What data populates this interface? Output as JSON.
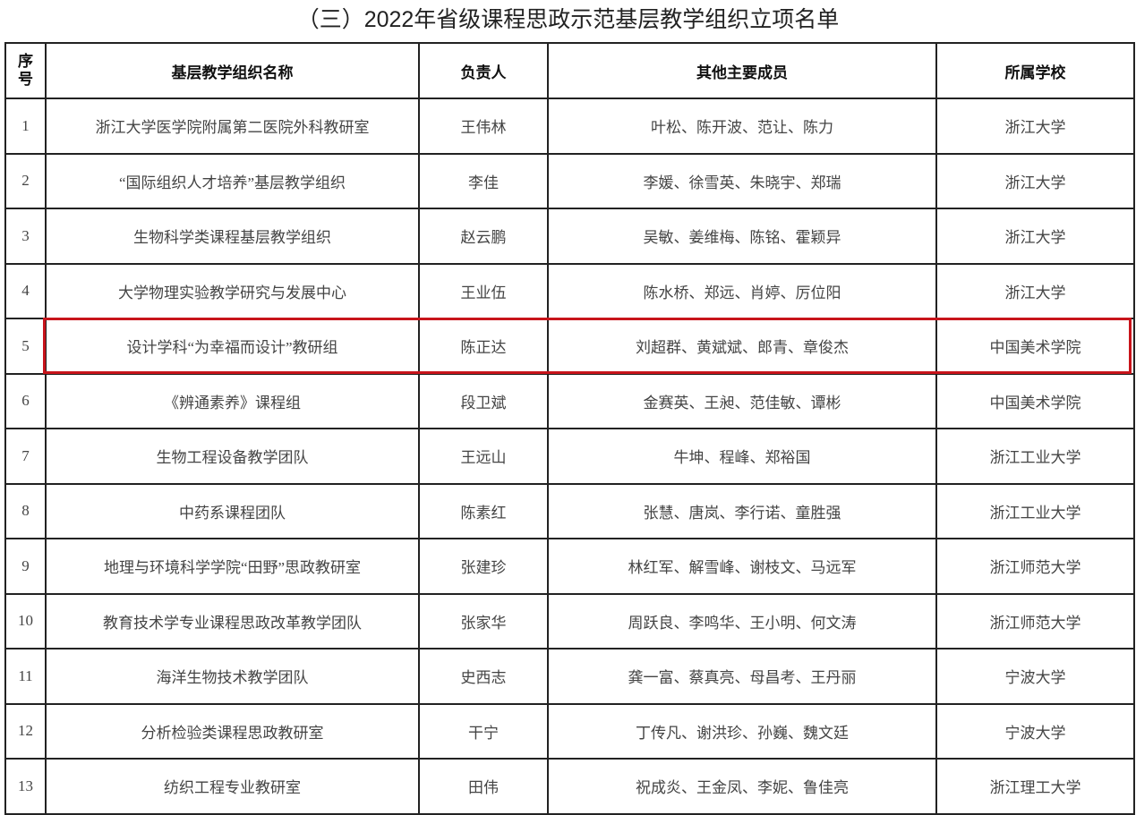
{
  "title": "（三）2022年省级课程思政示范基层教学组织立项名单",
  "headers": {
    "seq": "序号",
    "name": "基层教学组织名称",
    "leader": "负责人",
    "members": "其他主要成员",
    "school": "所属学校"
  },
  "highlight_color": "#c8141b",
  "highlighted_row": "6",
  "rows": [
    {
      "seq": "1",
      "name": "浙江大学医学院附属第二医院外科教研室",
      "leader": "王伟林",
      "members": "叶松、陈开波、范让、陈力",
      "school": "浙江大学"
    },
    {
      "seq": "2",
      "name": "“国际组织人才培养”基层教学组织",
      "leader": "李佳",
      "members": "李媛、徐雪英、朱晓宇、郑瑞",
      "school": "浙江大学"
    },
    {
      "seq": "3",
      "name": "生物科学类课程基层教学组织",
      "leader": "赵云鹏",
      "members": "吴敏、姜维梅、陈铭、霍颖异",
      "school": "浙江大学"
    },
    {
      "seq": "4",
      "name": "大学物理实验教学研究与发展中心",
      "leader": "王业伍",
      "members": "陈水桥、郑远、肖婷、厉位阳",
      "school": "浙江大学"
    },
    {
      "seq": "5",
      "name": "设计学科“为幸福而设计”教研组",
      "leader": "陈正达",
      "members": "刘超群、黄斌斌、郎青、章俊杰",
      "school": "中国美术学院"
    },
    {
      "seq": "6",
      "name": "《辨通素养》课程组",
      "leader": "段卫斌",
      "members": "金赛英、王昶、范佳敏、谭彬",
      "school": "中国美术学院"
    },
    {
      "seq": "7",
      "name": "生物工程设备教学团队",
      "leader": "王远山",
      "members": "牛坤、程峰、郑裕国",
      "school": "浙江工业大学"
    },
    {
      "seq": "8",
      "name": "中药系课程团队",
      "leader": "陈素红",
      "members": "张慧、唐岚、李行诺、童胜强",
      "school": "浙江工业大学"
    },
    {
      "seq": "9",
      "name": "地理与环境科学学院“田野”思政教研室",
      "leader": "张建珍",
      "members": "林红军、解雪峰、谢枝文、马远军",
      "school": "浙江师范大学"
    },
    {
      "seq": "10",
      "name": "教育技术学专业课程思政改革教学团队",
      "leader": "张家华",
      "members": "周跃良、李鸣华、王小明、何文涛",
      "school": "浙江师范大学"
    },
    {
      "seq": "11",
      "name": "海洋生物技术教学团队",
      "leader": "史西志",
      "members": "龚一富、蔡真亮、母昌考、王丹丽",
      "school": "宁波大学"
    },
    {
      "seq": "12",
      "name": "分析检验类课程思政教研室",
      "leader": "干宁",
      "members": "丁传凡、谢洪珍、孙巍、魏文廷",
      "school": "宁波大学"
    },
    {
      "seq": "13",
      "name": "纺织工程专业教研室",
      "leader": "田伟",
      "members": "祝成炎、王金凤、李妮、鲁佳亮",
      "school": "浙江理工大学"
    }
  ]
}
